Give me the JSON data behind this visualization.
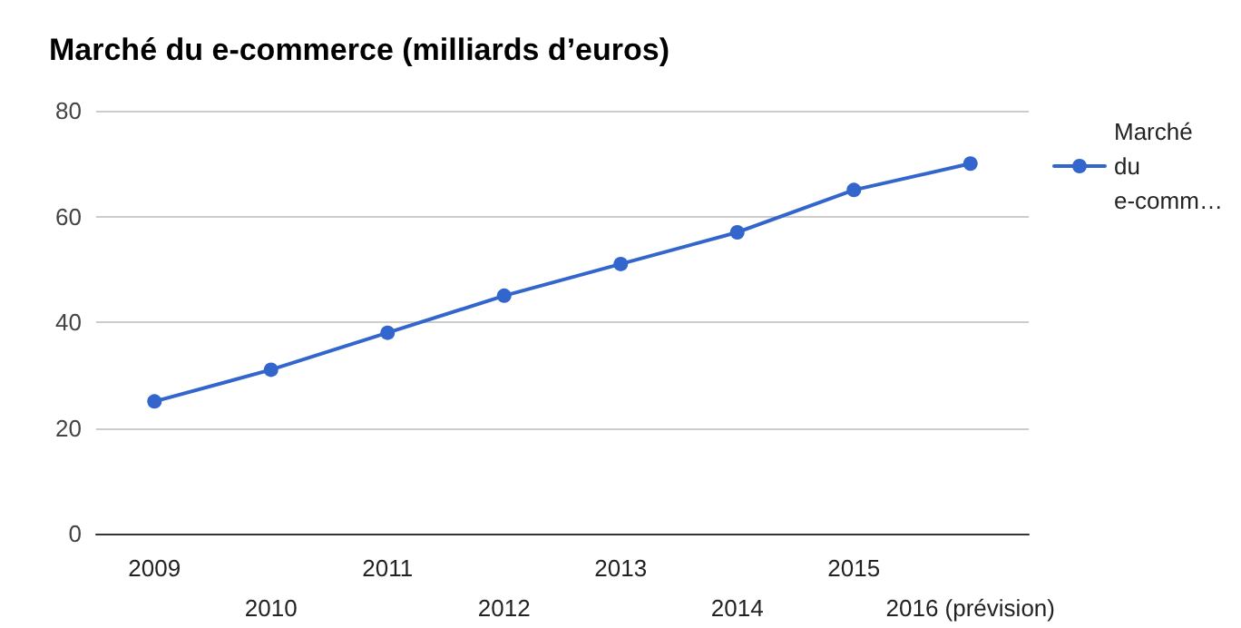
{
  "chart_data": {
    "type": "line",
    "title": "Marché du e-commerce (milliards d’euros)",
    "categories": [
      "2009",
      "2010",
      "2011",
      "2012",
      "2013",
      "2014",
      "2015",
      "2016 (prévision)"
    ],
    "series": [
      {
        "name": "Marché du e-comm…",
        "color": "#3366cc",
        "values": [
          25,
          31,
          38,
          45,
          51,
          57,
          65,
          70
        ]
      }
    ],
    "ylim": [
      0,
      80
    ],
    "yticks": [
      0,
      20,
      40,
      60,
      80
    ],
    "grid": "y",
    "legend": "top right",
    "marker": "circle",
    "line_style": "solid"
  }
}
